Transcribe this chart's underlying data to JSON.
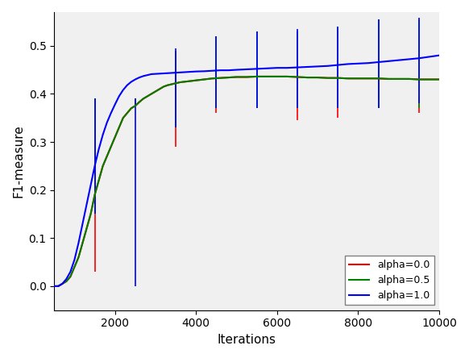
{
  "title": "",
  "xlabel": "Iterations",
  "ylabel": "F1-measure",
  "xlim": [
    500,
    10000
  ],
  "ylim": [
    -0.05,
    0.57
  ],
  "legend": [
    {
      "label": "alpha=0.0",
      "color": "red"
    },
    {
      "label": "alpha=0.5",
      "color": "green"
    },
    {
      "label": "alpha=1.0",
      "color": "blue"
    }
  ],
  "lines": {
    "red": {
      "x": [
        500,
        600,
        700,
        800,
        900,
        1000,
        1100,
        1200,
        1300,
        1400,
        1500,
        1600,
        1700,
        1800,
        1900,
        2000,
        2100,
        2200,
        2300,
        2400,
        2500,
        2600,
        2700,
        2800,
        2900,
        3000,
        3100,
        3200,
        3300,
        3400,
        3500,
        3600,
        3700,
        3800,
        3900,
        4000,
        4200,
        4400,
        4600,
        4800,
        5000,
        5250,
        5500,
        5750,
        6000,
        6250,
        6500,
        6750,
        7000,
        7250,
        7500,
        7750,
        8000,
        8250,
        8500,
        8750,
        9000,
        9250,
        9500,
        9750,
        10000
      ],
      "y": [
        0.0,
        0.0,
        0.005,
        0.01,
        0.02,
        0.04,
        0.06,
        0.09,
        0.12,
        0.15,
        0.19,
        0.22,
        0.25,
        0.27,
        0.29,
        0.31,
        0.33,
        0.35,
        0.36,
        0.37,
        0.375,
        0.383,
        0.39,
        0.395,
        0.4,
        0.405,
        0.41,
        0.415,
        0.418,
        0.42,
        0.422,
        0.424,
        0.425,
        0.426,
        0.427,
        0.428,
        0.43,
        0.432,
        0.433,
        0.434,
        0.435,
        0.435,
        0.436,
        0.436,
        0.436,
        0.436,
        0.435,
        0.434,
        0.434,
        0.433,
        0.433,
        0.432,
        0.432,
        0.432,
        0.432,
        0.431,
        0.431,
        0.431,
        0.43,
        0.43,
        0.43
      ]
    },
    "green": {
      "x": [
        500,
        600,
        700,
        800,
        900,
        1000,
        1100,
        1200,
        1300,
        1400,
        1500,
        1600,
        1700,
        1800,
        1900,
        2000,
        2100,
        2200,
        2300,
        2400,
        2500,
        2600,
        2700,
        2800,
        2900,
        3000,
        3100,
        3200,
        3300,
        3400,
        3500,
        3600,
        3700,
        3800,
        3900,
        4000,
        4200,
        4400,
        4600,
        4800,
        5000,
        5250,
        5500,
        5750,
        6000,
        6250,
        6500,
        6750,
        7000,
        7250,
        7500,
        7750,
        8000,
        8250,
        8500,
        8750,
        9000,
        9250,
        9500,
        9750,
        10000
      ],
      "y": [
        0.0,
        0.0,
        0.005,
        0.01,
        0.02,
        0.04,
        0.06,
        0.09,
        0.12,
        0.15,
        0.19,
        0.22,
        0.25,
        0.27,
        0.29,
        0.31,
        0.33,
        0.35,
        0.36,
        0.37,
        0.375,
        0.383,
        0.39,
        0.395,
        0.4,
        0.405,
        0.41,
        0.415,
        0.418,
        0.42,
        0.422,
        0.424,
        0.425,
        0.426,
        0.427,
        0.428,
        0.43,
        0.432,
        0.433,
        0.434,
        0.435,
        0.435,
        0.436,
        0.436,
        0.436,
        0.436,
        0.435,
        0.434,
        0.434,
        0.433,
        0.433,
        0.432,
        0.432,
        0.432,
        0.432,
        0.431,
        0.431,
        0.431,
        0.43,
        0.43,
        0.43
      ]
    },
    "blue": {
      "x": [
        500,
        600,
        700,
        800,
        900,
        1000,
        1100,
        1200,
        1300,
        1400,
        1500,
        1600,
        1700,
        1800,
        1900,
        2000,
        2100,
        2200,
        2300,
        2400,
        2500,
        2600,
        2700,
        2800,
        2900,
        3000,
        3100,
        3200,
        3300,
        3400,
        3500,
        3600,
        3700,
        3800,
        3900,
        4000,
        4200,
        4400,
        4600,
        4800,
        5000,
        5250,
        5500,
        5750,
        6000,
        6250,
        6500,
        6750,
        7000,
        7250,
        7500,
        7750,
        8000,
        8250,
        8500,
        8750,
        9000,
        9250,
        9500,
        9750,
        10000
      ],
      "y": [
        0.0,
        0.0,
        0.005,
        0.015,
        0.03,
        0.055,
        0.09,
        0.13,
        0.17,
        0.21,
        0.25,
        0.285,
        0.315,
        0.34,
        0.36,
        0.378,
        0.395,
        0.408,
        0.418,
        0.425,
        0.43,
        0.434,
        0.437,
        0.439,
        0.441,
        0.4415,
        0.442,
        0.4425,
        0.443,
        0.4435,
        0.444,
        0.4445,
        0.445,
        0.4455,
        0.446,
        0.4465,
        0.447,
        0.448,
        0.449,
        0.449,
        0.45,
        0.451,
        0.452,
        0.453,
        0.454,
        0.454,
        0.455,
        0.456,
        0.457,
        0.458,
        0.46,
        0.462,
        0.463,
        0.464,
        0.466,
        0.468,
        0.47,
        0.472,
        0.474,
        0.477,
        0.48
      ]
    }
  },
  "errorbars": {
    "x_positions": [
      1500,
      2500,
      3500,
      4500,
      5500,
      6500,
      7500,
      8500,
      9500
    ],
    "red": {
      "upper": [
        0.39,
        0.39,
        0.49,
        0.36,
        0.36,
        0.345,
        0.35,
        0.39,
        0.39
      ],
      "lower": [
        0.03,
        0.375,
        0.29,
        0.43,
        0.36,
        0.435,
        0.433,
        0.432,
        0.36
      ]
    },
    "green": {
      "upper": [
        0.39,
        0.39,
        0.49,
        0.52,
        0.53,
        0.53,
        0.54,
        0.555,
        0.555
      ],
      "lower": [
        0.15,
        0.375,
        0.33,
        0.37,
        0.37,
        0.37,
        0.37,
        0.37,
        0.37
      ]
    },
    "blue": {
      "upper": [
        0.39,
        0.39,
        0.495,
        0.52,
        0.53,
        0.535,
        0.54,
        0.555,
        0.558
      ],
      "lower": [
        0.15,
        0.0,
        0.33,
        0.37,
        0.37,
        0.37,
        0.37,
        0.37,
        0.38
      ]
    }
  },
  "xticks": [
    2000,
    4000,
    6000,
    8000,
    10000
  ],
  "yticks": [
    0.0,
    0.1,
    0.2,
    0.3,
    0.4,
    0.5
  ],
  "background_color": "#f0f0f0"
}
